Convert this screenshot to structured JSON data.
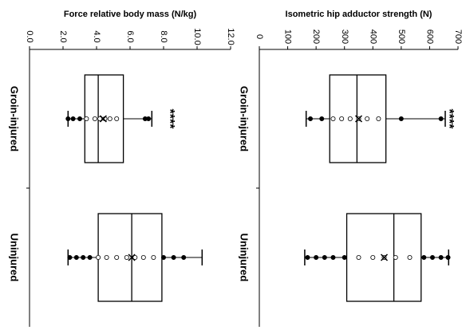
{
  "chart_data": [
    {
      "type": "box",
      "title": "Force relative body mass (N/kg)",
      "categories": [
        "Groin-injured",
        "Uninjured"
      ],
      "ylim": [
        0,
        12
      ],
      "yticks": [
        {
          "value": 0,
          "label": "0.0"
        },
        {
          "value": 2,
          "label": "2.0"
        },
        {
          "value": 4,
          "label": "4.0"
        },
        {
          "value": 6,
          "label": "6.0"
        },
        {
          "value": 8,
          "label": "8.0"
        },
        {
          "value": 10,
          "label": "10.0"
        },
        {
          "value": 12,
          "label": "12.0"
        }
      ],
      "boxes": [
        {
          "min": 2.3,
          "q1": 3.3,
          "median": 4.1,
          "q3": 5.6,
          "max": 7.3,
          "mean": 4.4,
          "points": [
            2.3,
            2.6,
            3.0,
            3.4,
            3.9,
            4.2,
            4.5,
            4.8,
            5.2,
            6.9,
            7.1
          ]
        },
        {
          "min": 2.3,
          "q1": 4.1,
          "median": 6.1,
          "q3": 7.9,
          "max": 10.3,
          "mean": 6.1,
          "points": [
            2.4,
            2.8,
            3.2,
            3.6,
            4.1,
            4.6,
            5.2,
            5.8,
            6.3,
            6.8,
            7.4,
            8.0,
            8.6,
            9.2
          ]
        }
      ],
      "annotation": "****"
    },
    {
      "type": "box",
      "title": "Isometric hip adductor strength (N)",
      "categories": [
        "Groin-injured",
        "Uninjured"
      ],
      "ylim": [
        0,
        700
      ],
      "yticks": [
        0,
        100,
        200,
        300,
        400,
        500,
        600,
        700
      ],
      "boxes": [
        {
          "min": 165,
          "q1": 248,
          "median": 344,
          "q3": 446,
          "max": 655,
          "mean": 350,
          "points": [
            180,
            220,
            260,
            290,
            320,
            350,
            380,
            420,
            500,
            640
          ]
        },
        {
          "min": 160,
          "q1": 308,
          "median": 474,
          "q3": 570,
          "max": 667,
          "mean": 440,
          "points": [
            170,
            200,
            230,
            260,
            300,
            350,
            400,
            440,
            480,
            530,
            580,
            610,
            640,
            665
          ]
        }
      ],
      "annotation": "****"
    }
  ]
}
